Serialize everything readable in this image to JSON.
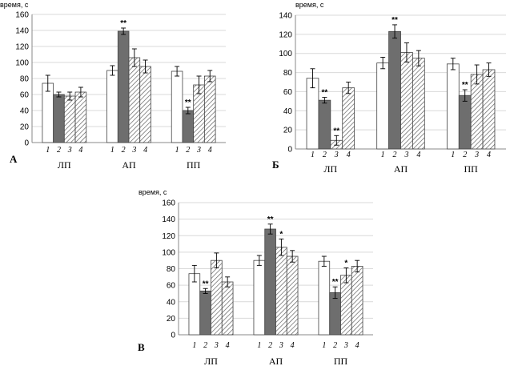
{
  "chart_data": [
    {
      "type": "bar",
      "panel_label": "А",
      "ylabel": "время, с",
      "ylim": [
        0,
        160
      ],
      "yticks": [
        0,
        20,
        40,
        60,
        80,
        100,
        120,
        140,
        160
      ],
      "bar_labels": [
        "1",
        "2",
        "3",
        "4"
      ],
      "categories": [
        "ЛП",
        "АП",
        "ПП"
      ],
      "series": [
        {
          "values": [
            74,
            90,
            89
          ],
          "errors": [
            10,
            6,
            6
          ],
          "marks": [
            "",
            "",
            ""
          ],
          "pattern": "white"
        },
        {
          "values": [
            60,
            139,
            40
          ],
          "errors": [
            3,
            4,
            4
          ],
          "marks": [
            "",
            "**",
            "**"
          ],
          "pattern": "gray"
        },
        {
          "values": [
            58,
            106,
            72
          ],
          "errors": [
            5,
            11,
            11
          ],
          "marks": [
            "",
            "",
            ""
          ],
          "pattern": "hatch"
        },
        {
          "values": [
            63,
            95,
            83
          ],
          "errors": [
            6,
            8,
            7
          ],
          "marks": [
            "",
            "",
            ""
          ],
          "pattern": "hatch"
        }
      ]
    },
    {
      "type": "bar",
      "panel_label": "Б",
      "ylabel": "время, с",
      "ylim": [
        0,
        140
      ],
      "yticks": [
        0,
        20,
        40,
        60,
        80,
        100,
        120,
        140
      ],
      "bar_labels": [
        "1",
        "2",
        "3",
        "4"
      ],
      "categories": [
        "ЛП",
        "АП",
        "ПП"
      ],
      "series": [
        {
          "values": [
            74,
            90,
            89
          ],
          "errors": [
            10,
            6,
            6
          ],
          "marks": [
            "",
            "",
            ""
          ],
          "pattern": "white"
        },
        {
          "values": [
            51,
            123,
            56
          ],
          "errors": [
            3,
            7,
            6
          ],
          "marks": [
            "**",
            "**",
            "**"
          ],
          "pattern": "gray"
        },
        {
          "values": [
            9,
            101,
            78
          ],
          "errors": [
            5,
            10,
            10
          ],
          "marks": [
            "**",
            "",
            ""
          ],
          "pattern": "hatch"
        },
        {
          "values": [
            64,
            95,
            83
          ],
          "errors": [
            6,
            8,
            7
          ],
          "marks": [
            "",
            "",
            ""
          ],
          "pattern": "hatch"
        }
      ]
    },
    {
      "type": "bar",
      "panel_label": "В",
      "ylabel": "время, с",
      "ylim": [
        0,
        160
      ],
      "yticks": [
        0,
        20,
        40,
        60,
        80,
        100,
        120,
        140,
        160
      ],
      "bar_labels": [
        "1",
        "2",
        "3",
        "4"
      ],
      "categories": [
        "ЛП",
        "АП",
        "ПП"
      ],
      "series": [
        {
          "values": [
            74,
            90,
            89
          ],
          "errors": [
            10,
            6,
            6
          ],
          "marks": [
            "",
            "",
            ""
          ],
          "pattern": "white"
        },
        {
          "values": [
            53,
            128,
            51
          ],
          "errors": [
            3,
            6,
            7
          ],
          "marks": [
            "**",
            "**",
            "**"
          ],
          "pattern": "gray"
        },
        {
          "values": [
            90,
            106,
            72
          ],
          "errors": [
            9,
            10,
            9
          ],
          "marks": [
            "",
            "*",
            "*"
          ],
          "pattern": "hatch"
        },
        {
          "values": [
            64,
            95,
            83
          ],
          "errors": [
            6,
            7,
            7
          ],
          "marks": [
            "",
            "",
            ""
          ],
          "pattern": "hatch"
        }
      ]
    }
  ],
  "colors": {
    "gray": "#6e6e6e",
    "white": "#ffffff",
    "hatch_line": "#555555",
    "grid": "#d9d9d9",
    "axis": "#888888"
  }
}
